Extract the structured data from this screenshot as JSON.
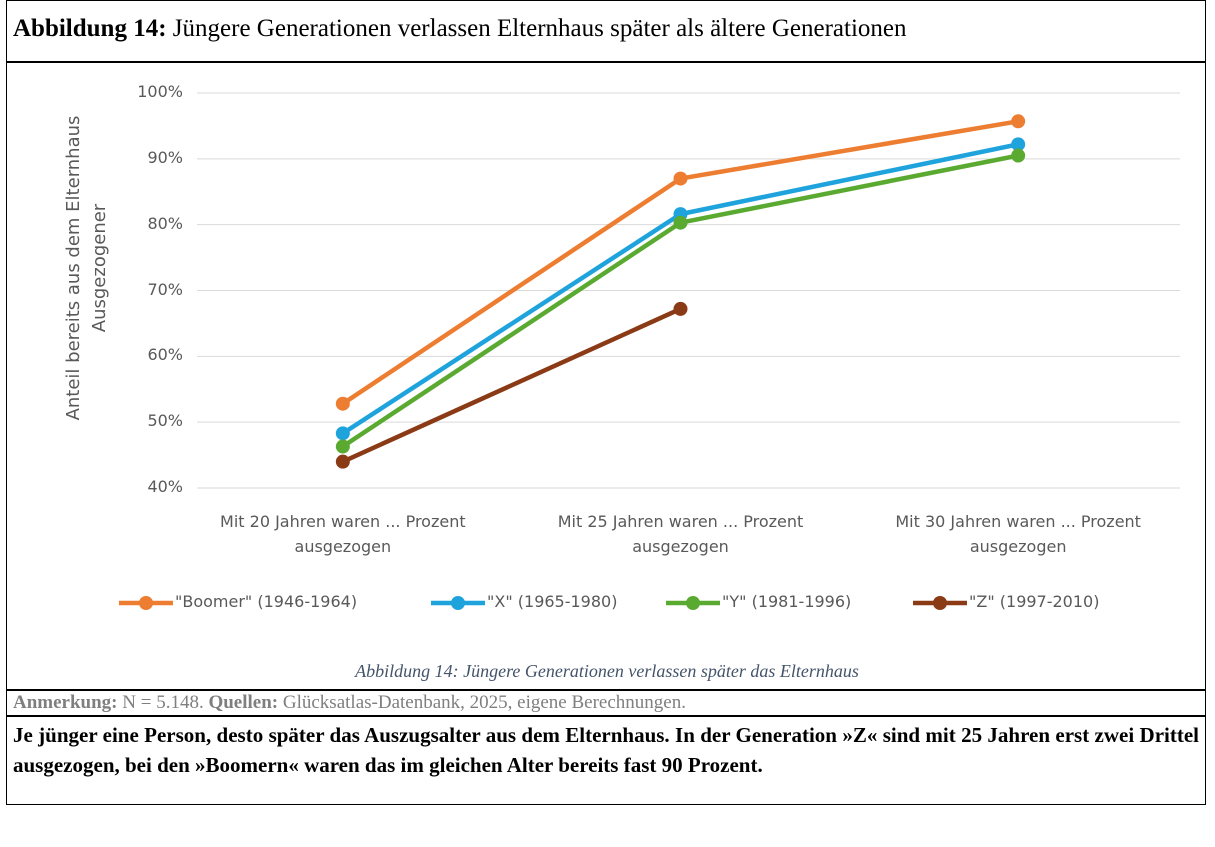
{
  "heading": {
    "label": "Abbildung 14:",
    "text": "Jüngere Generationen verlassen Elternhaus später als ältere Generationen"
  },
  "chart_data": {
    "type": "line",
    "categories": [
      "Mit 20 Jahren waren ... Prozent ausgezogen",
      "Mit 25 Jahren waren ... Prozent ausgezogen",
      "Mit 30 Jahren waren ... Prozent ausgezogen"
    ],
    "y_label": "Anteil bereits aus dem Elternhaus Ausgezogener",
    "series": [
      {
        "name": "\"Boomer\" (1946-1964)",
        "color": "#ed7d31",
        "values": [
          52.8,
          87.0,
          95.7
        ]
      },
      {
        "name": "\"X\" (1965-1980)",
        "color": "#1fa3dc",
        "values": [
          48.3,
          81.6,
          92.2
        ]
      },
      {
        "name": "\"Y\" (1981-1996)",
        "color": "#5aaa32",
        "values": [
          46.3,
          80.3,
          90.5
        ]
      },
      {
        "name": "\"Z\" (1997-2010)",
        "color": "#8b3a16",
        "values": [
          44.0,
          67.2,
          null
        ]
      }
    ],
    "ylim": [
      40,
      100
    ],
    "yticks": [
      {
        "value": 40,
        "label": "40%"
      },
      {
        "value": 50,
        "label": "50%"
      },
      {
        "value": 60,
        "label": "60%"
      },
      {
        "value": 70,
        "label": "70%"
      },
      {
        "value": 80,
        "label": "80%"
      },
      {
        "value": 90,
        "label": "90%"
      },
      {
        "value": 100,
        "label": "100%"
      }
    ],
    "grid": true,
    "legend": "bottom",
    "caption": "Abbildung 14: Jüngere Generationen verlassen später das Elternhaus"
  },
  "note": {
    "label1": "Anmerkung:",
    "text1": "N = 5.148.",
    "label2": "Quellen:",
    "text2": "Glücksatlas-Datenbank, 2025, eigene Berechnungen."
  },
  "summary": "Je jünger eine Person, desto später das Auszugsalter aus dem Elternhaus. In der Generation »Z« sind mit 25 Jahren erst zwei Drittel ausgezogen, bei den »Boomern« waren das im gleichen Alter bereits fast 90 Prozent."
}
